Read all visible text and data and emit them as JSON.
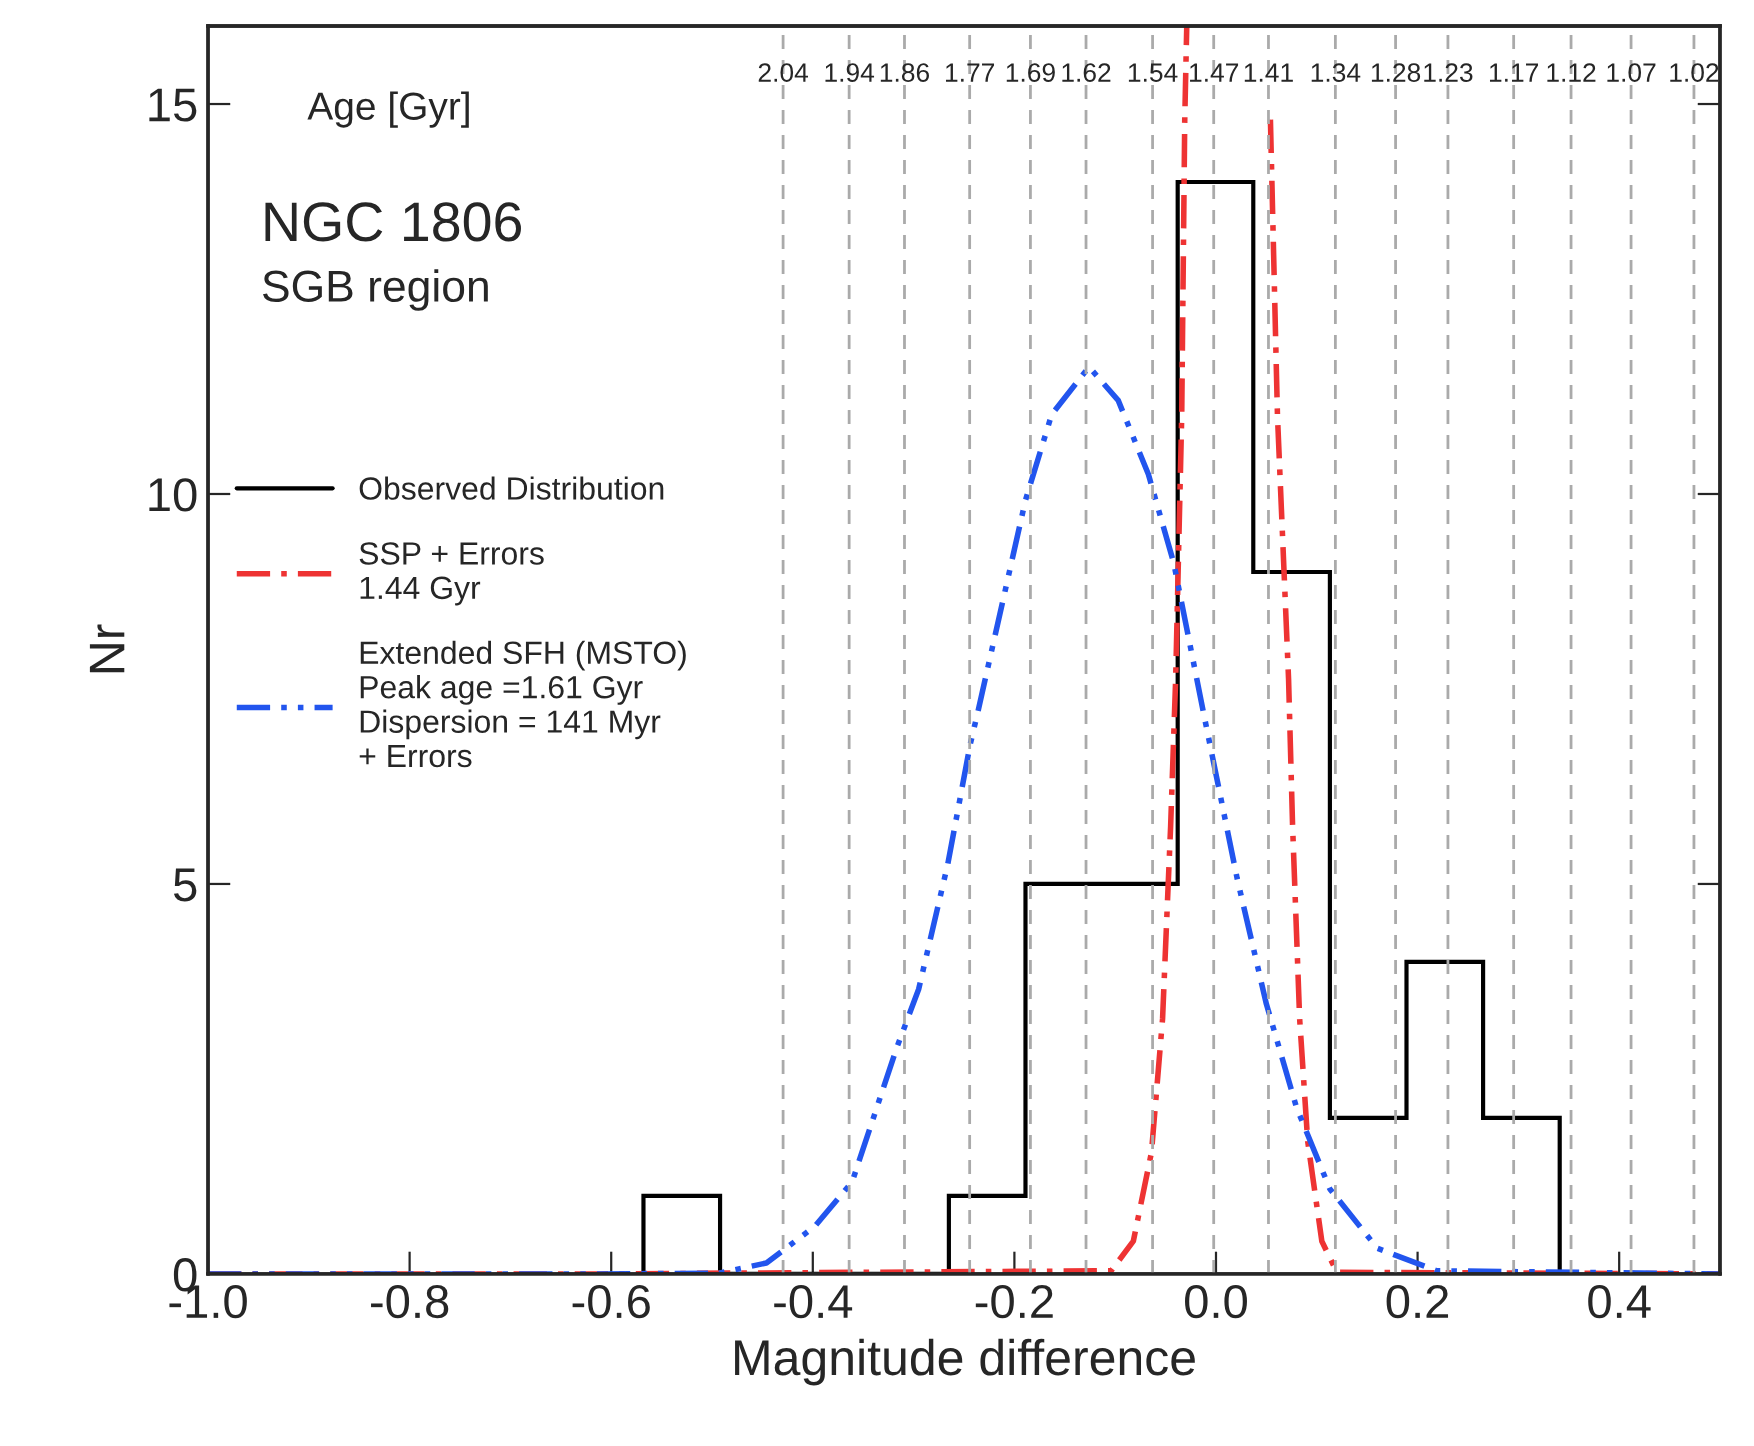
{
  "chart_data": {
    "type": "histogram",
    "xlabel": "Magnitude difference",
    "ylabel": "Nr",
    "x2label": "Age [Gyr]",
    "xlim": [
      -1.0,
      0.5
    ],
    "xticks": [
      {
        "value": -1.0,
        "label": "-1.0"
      },
      {
        "value": -0.8,
        "label": "-0.8"
      },
      {
        "value": -0.6,
        "label": "-0.6"
      },
      {
        "value": -0.4,
        "label": "-0.4"
      },
      {
        "value": -0.2,
        "label": "-0.2"
      },
      {
        "value": 0.0,
        "label": "0.0"
      },
      {
        "value": 0.2,
        "label": "0.2"
      },
      {
        "value": 0.4,
        "label": "0.4"
      }
    ],
    "x2lim": [
      3.16,
      1.0
    ],
    "x2ticks": [
      2.04,
      1.94,
      1.86,
      1.77,
      1.69,
      1.62,
      1.54,
      1.47,
      1.41,
      1.34,
      1.28,
      1.23,
      1.17,
      1.12,
      1.07,
      1.02
    ],
    "log": "x2",
    "ylim": [
      0,
      16
    ],
    "yticks": [
      0,
      5,
      10,
      15
    ],
    "grid": "x",
    "legend": "left",
    "annotations": [
      "NGC 1806",
      "SGB region"
    ],
    "series": [
      {
        "name": "Observed Distribution",
        "color": "#000000",
        "line_style": "solid",
        "bins": [
          -0.568,
          -0.492,
          -0.416,
          -0.34,
          -0.265,
          -0.189,
          -0.113,
          -0.038,
          0.037,
          0.113,
          0.189,
          0.265,
          0.341
        ],
        "values": [
          1,
          0,
          0,
          0,
          1,
          5,
          5,
          14,
          9,
          2,
          4,
          2
        ]
      },
      {
        "type": "line",
        "name": "SSP + Errors\n1.44 Gyr",
        "color": "#ee3333",
        "line_style": "dashdot",
        "x": [
          -1.0,
          -0.611,
          -0.104,
          -0.082,
          -0.064,
          -0.053,
          -0.045,
          -0.04,
          -0.034,
          -0.031,
          -0.029,
          0.052,
          0.054,
          0.061,
          0.072,
          0.076,
          0.083,
          0.091,
          0.105,
          0.12,
          0.5
        ],
        "values": [
          0,
          0,
          0.04,
          0.42,
          1.56,
          3.27,
          5.74,
          7.63,
          11.0,
          14.8,
          16,
          null,
          14.8,
          11.0,
          7.63,
          5.74,
          3.27,
          1.7,
          0.42,
          0.02,
          0
        ]
      },
      {
        "type": "line",
        "name": "Extended SFH (MSTO)\nPeak age =1.61 Gyr\nDispersion = 141 Myr\n+ Errors",
        "color": "#2255ee",
        "line_style": "dashdotdot",
        "x": [
          -1.0,
          -0.611,
          -0.493,
          -0.446,
          -0.398,
          -0.361,
          -0.317,
          -0.295,
          -0.266,
          -0.244,
          -0.236,
          -0.189,
          -0.163,
          -0.126,
          -0.097,
          -0.067,
          -0.042,
          -0.012,
          0.021,
          0.05,
          0.08,
          0.113,
          0.16,
          0.219,
          0.5
        ],
        "values": [
          0,
          0,
          0.01,
          0.14,
          0.61,
          1.18,
          2.89,
          3.65,
          5.26,
          6.78,
          7.22,
          9.92,
          11.02,
          11.63,
          11.2,
          10.25,
          9.12,
          7.17,
          5.07,
          3.46,
          2.13,
          1.09,
          0.33,
          0.04,
          0
        ]
      }
    ]
  }
}
